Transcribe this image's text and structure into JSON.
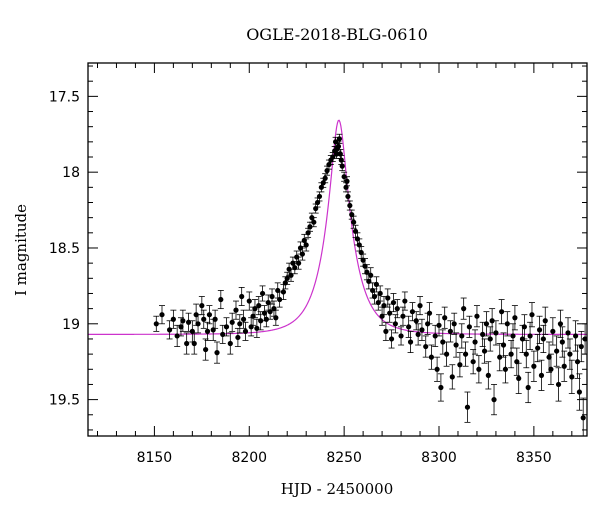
{
  "chart_data": {
    "type": "scatter",
    "title": "OGLE-2018-BLG-0610",
    "xlabel": "HJD - 2450000",
    "ylabel": "I magnitude",
    "xlim": [
      8115,
      8378
    ],
    "ylim": [
      17.28,
      19.74
    ],
    "y_inverted": true,
    "grid": false,
    "xticks": [
      8150,
      8200,
      8250,
      8300,
      8350
    ],
    "xtick_labels": [
      "8150",
      "8200",
      "8250",
      "8300",
      "8350"
    ],
    "yticks": [
      17.5,
      18,
      18.5,
      19,
      19.5
    ],
    "ytick_labels": [
      "17.5",
      "18",
      "18.5",
      "19",
      "19.5"
    ],
    "series": [
      {
        "kind": "points_with_errorbars",
        "color": "#000000",
        "points": [
          [
            8151,
            19.0,
            0.05
          ],
          [
            8154,
            18.94,
            0.06
          ],
          [
            8158,
            19.04,
            0.06
          ],
          [
            8160,
            18.97,
            0.06
          ],
          [
            8162,
            19.08,
            0.07
          ],
          [
            8164,
            19.02,
            0.06
          ],
          [
            8165,
            18.98,
            0.07
          ],
          [
            8167,
            19.13,
            0.07
          ],
          [
            8168,
            18.99,
            0.06
          ],
          [
            8170,
            19.05,
            0.07
          ],
          [
            8171,
            19.13,
            0.07
          ],
          [
            8172,
            18.94,
            0.07
          ],
          [
            8173,
            19.0,
            0.06
          ],
          [
            8175,
            18.88,
            0.06
          ],
          [
            8176,
            18.97,
            0.06
          ],
          [
            8177,
            19.17,
            0.07
          ],
          [
            8178,
            19.05,
            0.06
          ],
          [
            8179,
            18.94,
            0.06
          ],
          [
            8181,
            19.04,
            0.07
          ],
          [
            8182,
            18.97,
            0.06
          ],
          [
            8183,
            19.19,
            0.07
          ],
          [
            8185,
            18.84,
            0.06
          ],
          [
            8186,
            19.07,
            0.06
          ],
          [
            8188,
            19.02,
            0.06
          ],
          [
            8190,
            19.13,
            0.07
          ],
          [
            8191,
            18.99,
            0.06
          ],
          [
            8193,
            18.91,
            0.06
          ],
          [
            8194,
            19.09,
            0.06
          ],
          [
            8195,
            19.0,
            0.06
          ],
          [
            8196,
            18.82,
            0.06
          ],
          [
            8197,
            18.97,
            0.06
          ],
          [
            8198,
            19.05,
            0.06
          ],
          [
            8200,
            18.85,
            0.06
          ],
          [
            8201,
            19.02,
            0.06
          ],
          [
            8202,
            18.95,
            0.06
          ],
          [
            8203,
            18.9,
            0.06
          ],
          [
            8204,
            19.03,
            0.06
          ],
          [
            8205,
            18.88,
            0.06
          ],
          [
            8206,
            18.98,
            0.06
          ],
          [
            8207,
            18.8,
            0.05
          ],
          [
            8208,
            18.93,
            0.05
          ],
          [
            8209,
            18.97,
            0.05
          ],
          [
            8210,
            18.86,
            0.05
          ],
          [
            8211,
            18.92,
            0.05
          ],
          [
            8212,
            18.82,
            0.05
          ],
          [
            8213,
            18.9,
            0.05
          ],
          [
            8214,
            18.96,
            0.05
          ],
          [
            8215,
            18.78,
            0.05
          ],
          [
            8216,
            18.84,
            0.05
          ],
          [
            8218,
            18.79,
            0.05
          ],
          [
            8219,
            18.73,
            0.04
          ],
          [
            8220,
            18.7,
            0.04
          ],
          [
            8221,
            18.64,
            0.04
          ],
          [
            8222,
            18.68,
            0.04
          ],
          [
            8223,
            18.6,
            0.04
          ],
          [
            8224,
            18.63,
            0.04
          ],
          [
            8225,
            18.56,
            0.04
          ],
          [
            8226,
            18.6,
            0.04
          ],
          [
            8227,
            18.5,
            0.04
          ],
          [
            8228,
            18.54,
            0.04
          ],
          [
            8229,
            18.45,
            0.04
          ],
          [
            8230,
            18.48,
            0.04
          ],
          [
            8231,
            18.4,
            0.03
          ],
          [
            8232,
            18.36,
            0.03
          ],
          [
            8233,
            18.3,
            0.03
          ],
          [
            8234,
            18.33,
            0.03
          ],
          [
            8235,
            18.24,
            0.03
          ],
          [
            8236,
            18.2,
            0.03
          ],
          [
            8237,
            18.16,
            0.03
          ],
          [
            8238,
            18.1,
            0.03
          ],
          [
            8239,
            18.07,
            0.03
          ],
          [
            8240,
            18.04,
            0.03
          ],
          [
            8241,
            17.99,
            0.03
          ],
          [
            8242,
            17.95,
            0.03
          ],
          [
            8243,
            17.92,
            0.03
          ],
          [
            8244,
            17.9,
            0.03
          ],
          [
            8245,
            17.86,
            0.03
          ],
          [
            8245.5,
            17.8,
            0.03
          ],
          [
            8246,
            17.88,
            0.03
          ],
          [
            8246.5,
            17.84,
            0.03
          ],
          [
            8247,
            17.83,
            0.03
          ],
          [
            8247.5,
            17.78,
            0.03
          ],
          [
            8248,
            17.88,
            0.03
          ],
          [
            8248.5,
            17.92,
            0.03
          ],
          [
            8249,
            17.96,
            0.03
          ],
          [
            8250,
            18.03,
            0.03
          ],
          [
            8251,
            18.1,
            0.03
          ],
          [
            8251.5,
            18.06,
            0.03
          ],
          [
            8252,
            18.16,
            0.03
          ],
          [
            8253,
            18.22,
            0.03
          ],
          [
            8254,
            18.28,
            0.03
          ],
          [
            8255,
            18.33,
            0.04
          ],
          [
            8256,
            18.39,
            0.04
          ],
          [
            8257,
            18.44,
            0.04
          ],
          [
            8258,
            18.48,
            0.04
          ],
          [
            8259,
            18.53,
            0.04
          ],
          [
            8260,
            18.58,
            0.04
          ],
          [
            8261,
            18.62,
            0.05
          ],
          [
            8262,
            18.66,
            0.05
          ],
          [
            8263,
            18.72,
            0.05
          ],
          [
            8264,
            18.68,
            0.05
          ],
          [
            8265,
            18.78,
            0.05
          ],
          [
            8266,
            18.82,
            0.05
          ],
          [
            8267,
            18.74,
            0.05
          ],
          [
            8268,
            18.86,
            0.05
          ],
          [
            8269,
            18.8,
            0.05
          ],
          [
            8270,
            18.95,
            0.06
          ],
          [
            8271,
            18.88,
            0.06
          ],
          [
            8272,
            19.05,
            0.06
          ],
          [
            8273,
            18.83,
            0.06
          ],
          [
            8274,
            18.93,
            0.06
          ],
          [
            8275,
            19.1,
            0.06
          ],
          [
            8276,
            18.86,
            0.06
          ],
          [
            8277,
            19.0,
            0.06
          ],
          [
            8278,
            18.9,
            0.06
          ],
          [
            8280,
            19.08,
            0.06
          ],
          [
            8281,
            18.95,
            0.06
          ],
          [
            8282,
            18.85,
            0.06
          ],
          [
            8284,
            19.02,
            0.07
          ],
          [
            8285,
            19.12,
            0.07
          ],
          [
            8286,
            18.92,
            0.06
          ],
          [
            8288,
            18.98,
            0.06
          ],
          [
            8289,
            19.07,
            0.07
          ],
          [
            8290,
            18.88,
            0.06
          ],
          [
            8291,
            19.04,
            0.07
          ],
          [
            8293,
            19.15,
            0.07
          ],
          [
            8294,
            19.0,
            0.07
          ],
          [
            8295,
            18.93,
            0.07
          ],
          [
            8296,
            19.22,
            0.08
          ],
          [
            8298,
            19.08,
            0.07
          ],
          [
            8299,
            19.3,
            0.08
          ],
          [
            8300,
            19.01,
            0.07
          ],
          [
            8301,
            19.42,
            0.09
          ],
          [
            8302,
            19.12,
            0.08
          ],
          [
            8303,
            18.96,
            0.07
          ],
          [
            8304,
            19.2,
            0.08
          ],
          [
            8306,
            19.05,
            0.07
          ],
          [
            8307,
            19.35,
            0.08
          ],
          [
            8308,
            19.0,
            0.07
          ],
          [
            8309,
            19.14,
            0.08
          ],
          [
            8311,
            19.27,
            0.08
          ],
          [
            8312,
            19.08,
            0.08
          ],
          [
            8313,
            18.9,
            0.07
          ],
          [
            8314,
            19.2,
            0.08
          ],
          [
            8315,
            19.55,
            0.1
          ],
          [
            8316,
            19.02,
            0.07
          ],
          [
            8318,
            19.25,
            0.08
          ],
          [
            8319,
            19.12,
            0.08
          ],
          [
            8320,
            18.95,
            0.07
          ],
          [
            8321,
            19.3,
            0.09
          ],
          [
            8323,
            19.07,
            0.08
          ],
          [
            8324,
            19.18,
            0.08
          ],
          [
            8325,
            19.0,
            0.08
          ],
          [
            8326,
            19.34,
            0.09
          ],
          [
            8327,
            19.1,
            0.08
          ],
          [
            8328,
            18.98,
            0.08
          ],
          [
            8329,
            19.5,
            0.1
          ],
          [
            8330,
            19.06,
            0.08
          ],
          [
            8332,
            19.22,
            0.09
          ],
          [
            8333,
            18.92,
            0.08
          ],
          [
            8334,
            19.14,
            0.08
          ],
          [
            8335,
            19.3,
            0.09
          ],
          [
            8336,
            19.0,
            0.08
          ],
          [
            8338,
            19.2,
            0.09
          ],
          [
            8339,
            19.08,
            0.08
          ],
          [
            8340,
            18.96,
            0.08
          ],
          [
            8341,
            19.25,
            0.09
          ],
          [
            8342,
            19.36,
            0.1
          ],
          [
            8344,
            19.1,
            0.09
          ],
          [
            8345,
            19.02,
            0.08
          ],
          [
            8346,
            19.2,
            0.09
          ],
          [
            8347,
            19.42,
            0.1
          ],
          [
            8348,
            19.08,
            0.09
          ],
          [
            8349,
            18.94,
            0.08
          ],
          [
            8350,
            19.28,
            0.1
          ],
          [
            8352,
            19.16,
            0.09
          ],
          [
            8353,
            19.04,
            0.09
          ],
          [
            8354,
            19.34,
            0.1
          ],
          [
            8355,
            19.1,
            0.09
          ],
          [
            8356,
            18.98,
            0.09
          ],
          [
            8358,
            19.22,
            0.1
          ],
          [
            8359,
            19.3,
            0.1
          ],
          [
            8360,
            19.05,
            0.09
          ],
          [
            8362,
            19.18,
            0.1
          ],
          [
            8363,
            19.4,
            0.11
          ],
          [
            8364,
            19.0,
            0.09
          ],
          [
            8365,
            19.12,
            0.1
          ],
          [
            8366,
            19.28,
            0.1
          ],
          [
            8368,
            19.06,
            0.1
          ],
          [
            8369,
            19.2,
            0.1
          ],
          [
            8370,
            19.35,
            0.11
          ],
          [
            8372,
            19.08,
            0.1
          ],
          [
            8373,
            19.25,
            0.11
          ],
          [
            8374,
            19.45,
            0.12
          ],
          [
            8375,
            19.15,
            0.1
          ],
          [
            8376,
            19.62,
            0.13
          ],
          [
            8377,
            19.1,
            0.1
          ]
        ]
      },
      {
        "kind": "model_curve",
        "color": "#cc33cc",
        "t0": 8247.2,
        "tE": 13.5,
        "u0": 0.28,
        "baseline_mag": 19.07
      }
    ]
  }
}
